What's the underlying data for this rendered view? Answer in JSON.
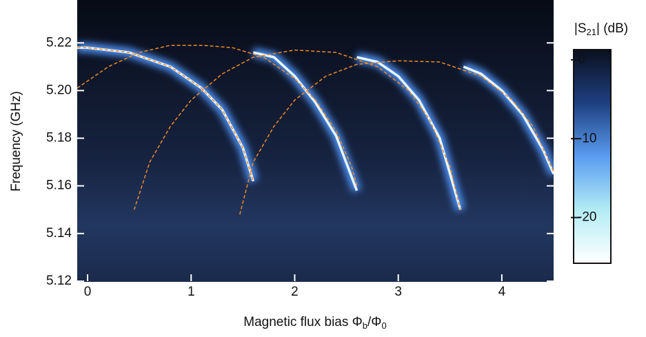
{
  "chart_data": {
    "type": "heatmap",
    "x_label": [
      "Magnetic flux bias Φ",
      "b",
      "/Φ",
      "0"
    ],
    "y_label": "Frequency (GHz)",
    "xlim": [
      -0.1,
      4.5
    ],
    "ylim": [
      5.12,
      5.238
    ],
    "xticks": [
      0,
      1,
      2,
      3,
      4
    ],
    "yticks": [
      {
        "value": 5.12,
        "label": "5.12"
      },
      5.14,
      5.16,
      5.18,
      {
        "value": 5.2,
        "label": "5.20"
      },
      5.22
    ],
    "resonances": [
      {
        "x": [
          -0.1,
          0,
          0.4,
          0.8,
          1.1,
          1.3,
          1.5,
          1.6
        ],
        "y": [
          5.218,
          5.218,
          5.216,
          5.21,
          5.201,
          5.192,
          5.176,
          5.162
        ]
      },
      {
        "x": [
          1.6,
          1.8,
          2.0,
          2.2,
          2.4,
          2.6
        ],
        "y": [
          5.216,
          5.214,
          5.206,
          5.195,
          5.181,
          5.158
        ]
      },
      {
        "x": [
          2.6,
          2.8,
          3.0,
          3.2,
          3.4,
          3.6
        ],
        "y": [
          5.214,
          5.212,
          5.206,
          5.196,
          5.18,
          5.15
        ]
      },
      {
        "x": [
          3.63,
          3.8,
          4.0,
          4.2,
          4.4,
          4.5
        ],
        "y": [
          5.21,
          5.207,
          5.2,
          5.19,
          5.175,
          5.165
        ]
      }
    ],
    "fit_color": "#f08a24",
    "fits": [
      {
        "x": [
          -0.1,
          0,
          0.4,
          0.8,
          1.1,
          1.3,
          1.5,
          1.6
        ],
        "y": [
          5.218,
          5.218,
          5.216,
          5.21,
          5.201,
          5.192,
          5.176,
          5.162
        ]
      },
      {
        "x": [
          -0.1,
          0.2,
          0.5,
          0.8,
          1.1,
          1.4,
          1.7,
          2.0,
          2.2,
          2.4,
          2.55,
          2.6
        ],
        "y": [
          5.201,
          5.21,
          5.216,
          5.219,
          5.219,
          5.218,
          5.214,
          5.205,
          5.196,
          5.183,
          5.168,
          5.16
        ]
      },
      {
        "x": [
          0.45,
          0.6,
          0.8,
          1.0,
          1.3,
          1.6,
          2.0,
          2.4,
          2.8,
          3.1,
          3.3,
          3.5,
          3.6
        ],
        "y": [
          5.15,
          5.17,
          5.185,
          5.196,
          5.207,
          5.214,
          5.217,
          5.216,
          5.21,
          5.2,
          5.188,
          5.168,
          5.15
        ]
      },
      {
        "x": [
          1.47,
          1.6,
          1.8,
          2.0,
          2.3,
          2.6,
          3.0,
          3.4,
          3.8,
          4.1,
          4.3,
          4.5
        ],
        "y": [
          5.148,
          5.17,
          5.185,
          5.196,
          5.206,
          5.211,
          5.2125,
          5.212,
          5.206,
          5.196,
          5.185,
          5.166
        ]
      }
    ],
    "colorbar": {
      "label": [
        "|S",
        "21",
        "| (dB)"
      ],
      "lim": [
        -25.8,
        1.3
      ],
      "ticks": [
        0,
        -10,
        -20
      ],
      "colormap": [
        "#ffffff",
        "#b3ecf5",
        "#5a9cf0",
        "#1e3f80",
        "#0a0f1e"
      ]
    }
  }
}
